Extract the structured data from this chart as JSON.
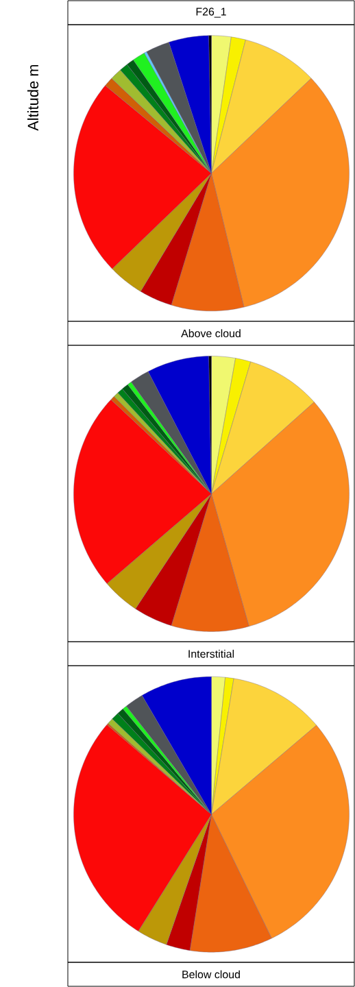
{
  "chart_data": [
    {
      "type": "pie",
      "title": "F26_1",
      "ylabel": "Altitude m",
      "xlabel": "Above cloud",
      "categories": [
        null,
        null,
        null,
        null,
        null,
        null,
        null,
        null,
        null,
        null,
        null,
        null,
        null,
        null,
        null,
        null,
        null
      ],
      "values": [
        2.3,
        1.7,
        8.9,
        33.3,
        8.5,
        3.9,
        4.2,
        23.2,
        1.1,
        1.4,
        1.0,
        0.9,
        1.5,
        0.3,
        2.8,
        4.7,
        0.3
      ],
      "colors": [
        "#f0f870",
        "#f8f000",
        "#fcd43c",
        "#fc8c20",
        "#ec6410",
        "#c00000",
        "#bc9808",
        "#fc0808",
        "#d06008",
        "#a0bc30",
        "#00801a",
        "#005c14",
        "#20f020",
        "#60c8fc",
        "#505458",
        "#0000cc",
        "#000000"
      ]
    },
    {
      "type": "pie",
      "xlabel": "Interstitial",
      "categories": [
        null,
        null,
        null,
        null,
        null,
        null,
        null,
        null,
        null,
        null,
        null,
        null,
        null,
        null,
        null,
        null
      ],
      "values": [
        2.8,
        1.8,
        8.8,
        32.2,
        9.1,
        4.6,
        4.4,
        23.3,
        0.5,
        0.6,
        0.7,
        0.8,
        0.5,
        2.3,
        7.3,
        0.3
      ],
      "colors": [
        "#f0f870",
        "#f8f000",
        "#fcd43c",
        "#fc8c20",
        "#ec6410",
        "#c00000",
        "#bc9808",
        "#fc0808",
        "#d06008",
        "#a0bc30",
        "#00801a",
        "#005c14",
        "#20f020",
        "#505458",
        "#0000cc",
        "#000000"
      ]
    },
    {
      "type": "pie",
      "xlabel": "Below cloud",
      "categories": [
        null,
        null,
        null,
        null,
        null,
        null,
        null,
        null,
        null,
        null,
        null,
        null,
        null,
        null,
        null
      ],
      "values": [
        1.6,
        1.0,
        11.2,
        29.0,
        9.7,
        2.8,
        3.6,
        27.4,
        0.2,
        0.7,
        0.9,
        0.8,
        0.5,
        2.2,
        8.4
      ],
      "colors": [
        "#f0f870",
        "#f8f000",
        "#fcd43c",
        "#fc8c20",
        "#ec6410",
        "#c00000",
        "#bc9808",
        "#fc0808",
        "#d06008",
        "#a0bc30",
        "#00801a",
        "#005c14",
        "#20f020",
        "#505458",
        "#0000cc"
      ]
    }
  ]
}
